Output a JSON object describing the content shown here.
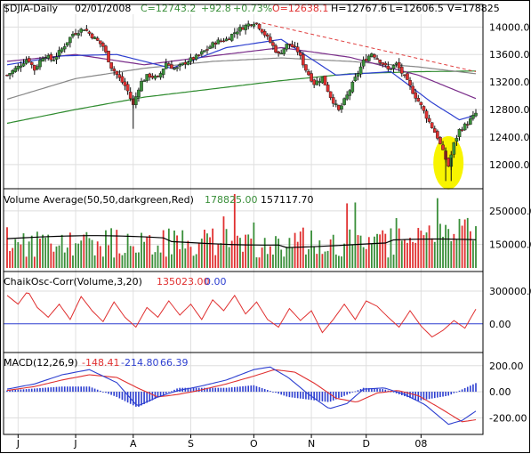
{
  "chart_data": [
    {
      "type": "candlestick",
      "header": {
        "symbol": "$DJIA-Daily",
        "date": "02/01/2008",
        "close": "C=12743.2",
        "change": "+92.8",
        "pct": "+0.73%",
        "open": "O=12638.1",
        "high": "H=12767.6",
        "low": "L=12606.5",
        "volume": "V=178825"
      },
      "ylim": [
        11700,
        14250
      ],
      "yticks": [
        "14000.0",
        "13600.0",
        "13200.0",
        "12800.0",
        "12400.0",
        "12000.0"
      ],
      "ytick_values": [
        14000,
        13600,
        13200,
        12800,
        12400,
        12000
      ],
      "close_path": [
        [
          0,
          13300
        ],
        [
          8,
          13420
        ],
        [
          15,
          13550
        ],
        [
          20,
          13380
        ],
        [
          27,
          13600
        ],
        [
          33,
          13510
        ],
        [
          40,
          13680
        ],
        [
          48,
          13900
        ],
        [
          56,
          13980
        ],
        [
          62,
          13870
        ],
        [
          70,
          13720
        ],
        [
          76,
          13420
        ],
        [
          82,
          13250
        ],
        [
          87,
          13120
        ],
        [
          92,
          12860
        ],
        [
          97,
          13180
        ],
        [
          103,
          13300
        ],
        [
          110,
          13250
        ],
        [
          116,
          13480
        ],
        [
          123,
          13380
        ],
        [
          131,
          13500
        ],
        [
          138,
          13560
        ],
        [
          146,
          13680
        ],
        [
          152,
          13780
        ],
        [
          160,
          13820
        ],
        [
          167,
          13940
        ],
        [
          175,
          14030
        ],
        [
          181,
          14080
        ],
        [
          186,
          13950
        ],
        [
          192,
          13780
        ],
        [
          198,
          13600
        ],
        [
          205,
          13760
        ],
        [
          212,
          13650
        ],
        [
          218,
          13380
        ],
        [
          224,
          13180
        ],
        [
          230,
          13260
        ],
        [
          236,
          12990
        ],
        [
          242,
          12780
        ],
        [
          248,
          13000
        ],
        [
          254,
          13250
        ],
        [
          260,
          13500
        ],
        [
          266,
          13620
        ],
        [
          272,
          13510
        ],
        [
          278,
          13380
        ],
        [
          284,
          13460
        ],
        [
          290,
          13270
        ],
        [
          296,
          13060
        ],
        [
          302,
          12850
        ],
        [
          308,
          12620
        ],
        [
          314,
          12400
        ],
        [
          318,
          12180
        ],
        [
          322,
          11980
        ],
        [
          326,
          12300
        ],
        [
          330,
          12500
        ],
        [
          336,
          12600
        ],
        [
          342,
          12743.2
        ]
      ],
      "sma20": [
        [
          0,
          13450
        ],
        [
          40,
          13580
        ],
        [
          80,
          13600
        ],
        [
          120,
          13400
        ],
        [
          160,
          13700
        ],
        [
          200,
          13820
        ],
        [
          240,
          13300
        ],
        [
          280,
          13350
        ],
        [
          310,
          12900
        ],
        [
          330,
          12650
        ],
        [
          342,
          12720
        ]
      ],
      "sma50": [
        [
          0,
          13500
        ],
        [
          50,
          13600
        ],
        [
          100,
          13450
        ],
        [
          150,
          13580
        ],
        [
          200,
          13700
        ],
        [
          250,
          13560
        ],
        [
          300,
          13300
        ],
        [
          342,
          12960
        ]
      ],
      "sma100": [
        [
          0,
          12950
        ],
        [
          50,
          13250
        ],
        [
          100,
          13400
        ],
        [
          150,
          13500
        ],
        [
          200,
          13550
        ],
        [
          250,
          13500
        ],
        [
          300,
          13420
        ],
        [
          342,
          13320
        ]
      ],
      "sma200": [
        [
          0,
          12600
        ],
        [
          50,
          12800
        ],
        [
          100,
          12980
        ],
        [
          150,
          13100
        ],
        [
          200,
          13220
        ],
        [
          250,
          13320
        ],
        [
          300,
          13350
        ],
        [
          342,
          13360
        ]
      ],
      "trendline": [
        [
          186,
          14060
        ],
        [
          342,
          13350
        ]
      ],
      "highlight": {
        "x": 322,
        "y": 12000
      }
    },
    {
      "type": "bar",
      "title": "Volume Average(50,50,darkgreen,Red)",
      "value1": "178825.00",
      "value2": "157117.70",
      "yticks": [
        "250000.0",
        "150000.0"
      ],
      "ytick_values": [
        250000,
        150000
      ],
      "ylim": [
        80000,
        300000
      ],
      "average": 157117.7
    },
    {
      "type": "line",
      "title": "ChaikOsc-Corr(Volume,3,20)",
      "value1": "135023.00",
      "value2": "0.00",
      "yticks": [
        "300000.0",
        "0.00"
      ],
      "ytick_values": [
        300000,
        0
      ],
      "ylim": [
        -230000,
        430000
      ],
      "series": [
        [
          0,
          260000
        ],
        [
          8,
          180000
        ],
        [
          15,
          300000
        ],
        [
          22,
          150000
        ],
        [
          30,
          60000
        ],
        [
          38,
          180000
        ],
        [
          46,
          40000
        ],
        [
          54,
          250000
        ],
        [
          62,
          120000
        ],
        [
          70,
          20000
        ],
        [
          78,
          200000
        ],
        [
          86,
          60000
        ],
        [
          94,
          -30000
        ],
        [
          102,
          150000
        ],
        [
          110,
          60000
        ],
        [
          118,
          210000
        ],
        [
          126,
          80000
        ],
        [
          134,
          180000
        ],
        [
          142,
          40000
        ],
        [
          150,
          220000
        ],
        [
          158,
          120000
        ],
        [
          166,
          260000
        ],
        [
          174,
          90000
        ],
        [
          182,
          200000
        ],
        [
          190,
          40000
        ],
        [
          198,
          -30000
        ],
        [
          206,
          140000
        ],
        [
          214,
          30000
        ],
        [
          222,
          120000
        ],
        [
          230,
          -80000
        ],
        [
          238,
          40000
        ],
        [
          246,
          180000
        ],
        [
          254,
          40000
        ],
        [
          262,
          210000
        ],
        [
          270,
          160000
        ],
        [
          278,
          60000
        ],
        [
          286,
          -30000
        ],
        [
          294,
          120000
        ],
        [
          302,
          -20000
        ],
        [
          310,
          -120000
        ],
        [
          318,
          -60000
        ],
        [
          326,
          30000
        ],
        [
          334,
          -40000
        ],
        [
          342,
          135023
        ]
      ]
    },
    {
      "type": "line",
      "title": "MACD(12,26,9)",
      "macd": "-148.41",
      "signal": "-214.80",
      "hist": "66.39",
      "yticks": [
        "200.00",
        "0.00",
        "-200.00"
      ],
      "ytick_values": [
        200,
        0,
        -200
      ],
      "ylim": [
        -300,
        260
      ],
      "macd_series": [
        [
          0,
          20
        ],
        [
          20,
          60
        ],
        [
          40,
          130
        ],
        [
          60,
          170
        ],
        [
          80,
          70
        ],
        [
          95,
          -110
        ],
        [
          110,
          -40
        ],
        [
          125,
          10
        ],
        [
          140,
          40
        ],
        [
          160,
          90
        ],
        [
          180,
          170
        ],
        [
          192,
          190
        ],
        [
          205,
          110
        ],
        [
          220,
          -20
        ],
        [
          235,
          -130
        ],
        [
          248,
          -90
        ],
        [
          260,
          20
        ],
        [
          275,
          30
        ],
        [
          290,
          -20
        ],
        [
          305,
          -100
        ],
        [
          322,
          -250
        ],
        [
          332,
          -220
        ],
        [
          342,
          -148.41
        ]
      ],
      "signal_series": [
        [
          0,
          10
        ],
        [
          20,
          40
        ],
        [
          40,
          90
        ],
        [
          60,
          130
        ],
        [
          80,
          110
        ],
        [
          95,
          30
        ],
        [
          110,
          -40
        ],
        [
          125,
          -20
        ],
        [
          140,
          10
        ],
        [
          160,
          60
        ],
        [
          180,
          120
        ],
        [
          195,
          170
        ],
        [
          210,
          150
        ],
        [
          225,
          60
        ],
        [
          240,
          -50
        ],
        [
          255,
          -80
        ],
        [
          270,
          -10
        ],
        [
          285,
          10
        ],
        [
          300,
          -30
        ],
        [
          315,
          -120
        ],
        [
          332,
          -230
        ],
        [
          342,
          -214.8
        ]
      ],
      "hist_series": [
        [
          0,
          10
        ],
        [
          40,
          40
        ],
        [
          60,
          40
        ],
        [
          80,
          -40
        ],
        [
          95,
          -120
        ],
        [
          125,
          30
        ],
        [
          160,
          30
        ],
        [
          180,
          50
        ],
        [
          205,
          -40
        ],
        [
          235,
          -80
        ],
        [
          260,
          30
        ],
        [
          275,
          20
        ],
        [
          300,
          -70
        ],
        [
          322,
          -30
        ],
        [
          342,
          66.39
        ]
      ]
    }
  ],
  "x_axis": {
    "labels": [
      "J",
      "J",
      "A",
      "S",
      "O",
      "N",
      "D",
      "08"
    ],
    "index": [
      8,
      50,
      92,
      134,
      180,
      222,
      262,
      302
    ]
  },
  "colors": {
    "up": "#3a8f3a",
    "down": "#e03030",
    "blue": "#2d3fd0",
    "purple": "#7a2d8a",
    "gray": "#888888",
    "green": "#2e8b2e",
    "dashed_red": "#e04040",
    "highlight": "#f8f400"
  }
}
